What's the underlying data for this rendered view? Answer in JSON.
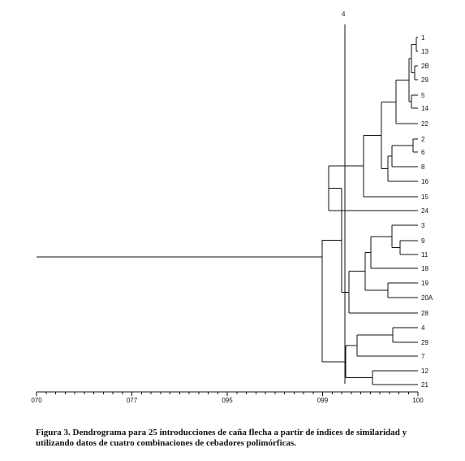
{
  "chart_data": {
    "type": "dendrogram",
    "cut_label": "4",
    "axis_tick_labels": [
      "070",
      "077",
      "095",
      "099",
      "100"
    ],
    "leaves": [
      "1",
      "13",
      "2B",
      "29",
      "5",
      "14",
      "22",
      "2",
      "6",
      "8",
      "16",
      "15",
      "24",
      "3",
      "9",
      "11",
      "18",
      "19",
      "20A",
      "28",
      "4",
      "29",
      "7",
      "12",
      "21"
    ],
    "tree": {
      "c": [
        {
          "c": [
            {
              "c": [
                {
                  "c": [
                    {
                      "c": [
                        {
                          "c": [
                            {
                              "c": [
                                {
                                  "c": [
                                    {
                                      "c": [
                                        {
                                          "l": 0
                                        },
                                        {
                                          "l": 1
                                        }
                                      ]
                                    },
                                    {
                                      "c": [
                                        {
                                          "l": 2
                                        },
                                        {
                                          "l": 3
                                        }
                                      ]
                                    }
                                  ]
                                },
                                {
                                  "c": [
                                    {
                                      "l": 4
                                    },
                                    {
                                      "l": 5
                                    }
                                  ]
                                }
                              ]
                            },
                            {
                              "l": 6
                            }
                          ]
                        },
                        {
                          "c": [
                            {
                              "c": [
                                {
                                  "c": [
                                    {
                                      "l": 7
                                    },
                                    {
                                      "l": 8
                                    }
                                  ]
                                },
                                {
                                  "l": 9
                                }
                              ]
                            },
                            {
                              "l": 10
                            }
                          ]
                        }
                      ]
                    },
                    {
                      "l": 11
                    }
                  ]
                },
                {
                  "l": 12
                }
              ]
            },
            {
              "c": [
                {
                  "c": [
                    {
                      "c": [
                        {
                          "c": [
                            {
                              "l": 13
                            },
                            {
                              "c": [
                                {
                                  "l": 14
                                },
                                {
                                  "l": 15
                                }
                              ]
                            }
                          ]
                        },
                        {
                          "l": 16
                        }
                      ]
                    },
                    {
                      "c": [
                        {
                          "l": 17
                        },
                        {
                          "l": 18
                        }
                      ]
                    }
                  ]
                },
                {
                  "l": 19
                }
              ]
            }
          ]
        },
        {
          "c": [
            {
              "c": [
                {
                  "c": [
                    {
                      "l": 20
                    },
                    {
                      "l": 21
                    }
                  ]
                },
                {
                  "l": 22
                }
              ]
            },
            {
              "c": [
                {
                  "l": 23
                },
                {
                  "l": 24
                }
              ]
            }
          ]
        }
      ]
    }
  },
  "caption": {
    "label": "Figura 3.",
    "text": "Dendrograma para 25 introducciones de caña flecha a partir de índices de similaridad y utilizando datos de cuatro combinaciones de cebadores polimórficas."
  }
}
